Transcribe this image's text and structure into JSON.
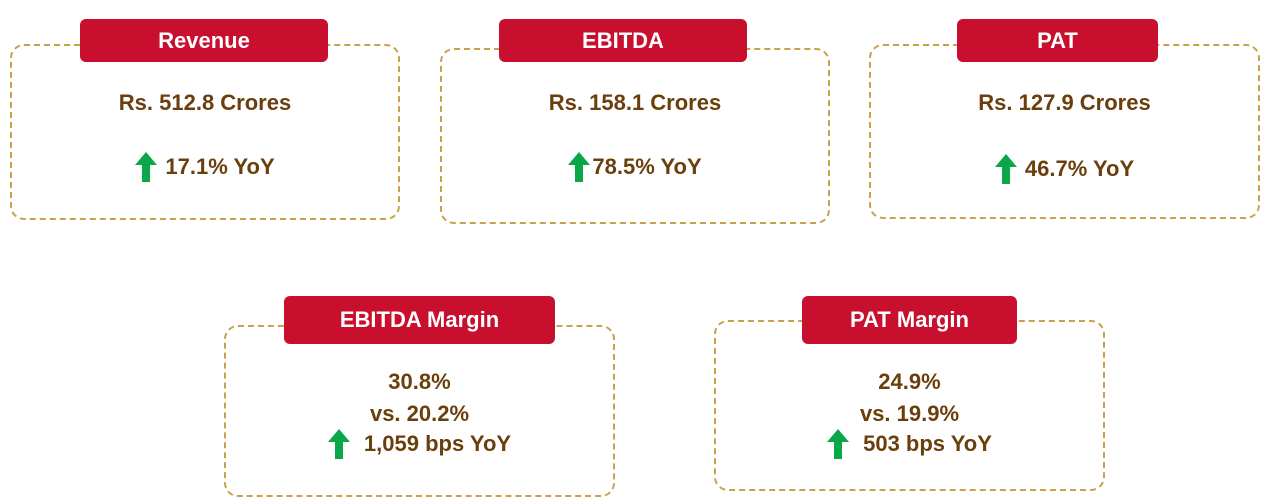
{
  "colors": {
    "label_bg": "#c8102e",
    "text": "#6a3f0c",
    "border": "#c8a24a",
    "arrow": "#0aa64a"
  },
  "cards": {
    "revenue": {
      "label": "Revenue",
      "value": "Rs. 512.8 Crores",
      "yoy": "17.1% YoY",
      "arrow_icon": "up-arrow-icon"
    },
    "ebitda": {
      "label": "EBITDA",
      "value": "Rs. 158.1 Crores",
      "yoy": "78.5% YoY",
      "arrow_icon": "up-arrow-icon"
    },
    "pat": {
      "label": "PAT",
      "value": "Rs. 127.9 Crores",
      "yoy": "46.7% YoY",
      "arrow_icon": "up-arrow-icon"
    },
    "ebitda_margin": {
      "label": "EBITDA Margin",
      "value": "30.8%",
      "comparison": "vs. 20.2%",
      "yoy": "1,059 bps YoY",
      "arrow_icon": "up-arrow-icon"
    },
    "pat_margin": {
      "label": "PAT Margin",
      "value": "24.9%",
      "comparison": "vs. 19.9%",
      "yoy": "503 bps YoY",
      "arrow_icon": "up-arrow-icon"
    }
  }
}
